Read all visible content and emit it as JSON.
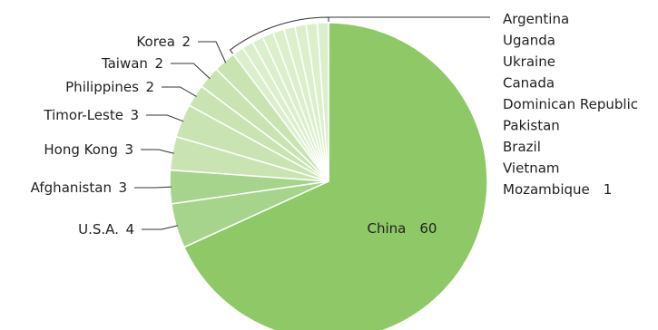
{
  "chart_data": {
    "type": "pie",
    "title": "",
    "slices": [
      {
        "label": "China",
        "value": 60,
        "color": "#8fc866"
      },
      {
        "label": "U.S.A.",
        "value": 4,
        "color": "#a7d48c"
      },
      {
        "label": "Afghanistan",
        "value": 3,
        "color": "#a7d48c"
      },
      {
        "label": "Hong Kong",
        "value": 3,
        "color": "#c9e4b2"
      },
      {
        "label": "Timor-Leste",
        "value": 3,
        "color": "#c9e4b2"
      },
      {
        "label": "Philippines",
        "value": 2,
        "color": "#c9e4b2"
      },
      {
        "label": "Taiwan",
        "value": 2,
        "color": "#c9e4b2"
      },
      {
        "label": "Korea",
        "value": 2,
        "color": "#c9e4b2"
      },
      {
        "label": "Mozambique",
        "value": 1,
        "color": "#dcefcc"
      },
      {
        "label": "Vietnam",
        "value": 1,
        "color": "#dcefcc"
      },
      {
        "label": "Brazil",
        "value": 1,
        "color": "#dcefcc"
      },
      {
        "label": "Pakistan",
        "value": 1,
        "color": "#dcefcc"
      },
      {
        "label": "Dominican Republic",
        "value": 1,
        "color": "#dcefcc"
      },
      {
        "label": "Canada",
        "value": 1,
        "color": "#dcefcc"
      },
      {
        "label": "Ukraine",
        "value": 1,
        "color": "#dcefcc"
      },
      {
        "label": "Uganda",
        "value": 1,
        "color": "#dcefcc"
      },
      {
        "label": "Argentina",
        "value": 1,
        "color": "#dcefcc"
      }
    ],
    "grouped_label": {
      "names": [
        "Argentina",
        "Uganda",
        "Ukraine",
        "Canada",
        "Dominican Republic",
        "Pakistan",
        "Brazil",
        "Vietnam",
        "Mozambique"
      ],
      "value": 1
    }
  }
}
